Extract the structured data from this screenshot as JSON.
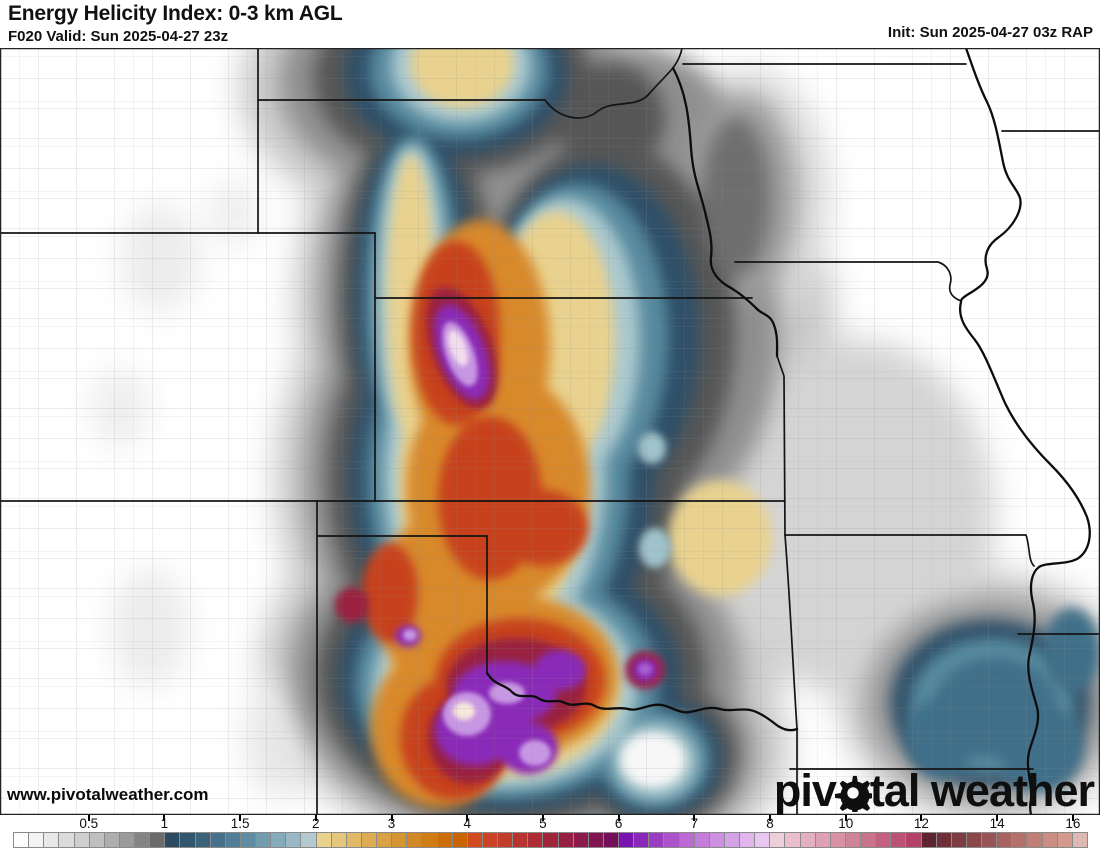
{
  "header": {
    "title": "Energy Helicity Index: 0-3 km AGL",
    "valid_label": "F020 Valid: Sun 2025-04-27 23z",
    "init_label": "Init: Sun 2025-04-27 03z RAP"
  },
  "map": {
    "watermark": "www.pivotalweather.com",
    "logo_text_left": "piv",
    "logo_text_right": "tal weather"
  },
  "colorbar": {
    "tick_labels": [
      "0.5",
      "1",
      "1.5",
      "2",
      "3",
      "4",
      "5",
      "6",
      "7",
      "8",
      "10",
      "12",
      "14",
      "16"
    ],
    "cell_colors": [
      "#ffffff",
      "#f3f3f3",
      "#e8e8e8",
      "#dcdcdc",
      "#cfcfcf",
      "#bfbfbf",
      "#adadad",
      "#9a9a9a",
      "#858585",
      "#6b6b6b",
      "#2c4a60",
      "#32566e",
      "#3b637c",
      "#45718a",
      "#517f97",
      "#5f8da3",
      "#719bae",
      "#85aaba",
      "#9bb9c4",
      "#b2c9ce",
      "#e9d28d",
      "#e5c67a",
      "#e1b967",
      "#ddad54",
      "#d9a142",
      "#d59533",
      "#d28825",
      "#cf7b16",
      "#cc6e08",
      "#c96400",
      "#d14a1e",
      "#c94324",
      "#c13c29",
      "#b7342e",
      "#ac2c34",
      "#a0253c",
      "#952044",
      "#8a1b4b",
      "#7f1652",
      "#741158",
      "#7912ae",
      "#8927b8",
      "#9a3dc2",
      "#aa53cb",
      "#ba69d5",
      "#c47cda",
      "#cd8fe0",
      "#d6a2e6",
      "#dfb5ec",
      "#e8c8f2",
      "#eeced7",
      "#e9bfcb",
      "#e3b0bf",
      "#dda1b3",
      "#d792a7",
      "#d1839b",
      "#ca738d",
      "#c36280",
      "#bc5274",
      "#b44167",
      "#5e2530",
      "#6d3039",
      "#7c3c42",
      "#8b484b",
      "#9a5455",
      "#a86260",
      "#b4706b",
      "#c07e77",
      "#cb8c83",
      "#d59a8f",
      "#ddb8b4"
    ]
  }
}
